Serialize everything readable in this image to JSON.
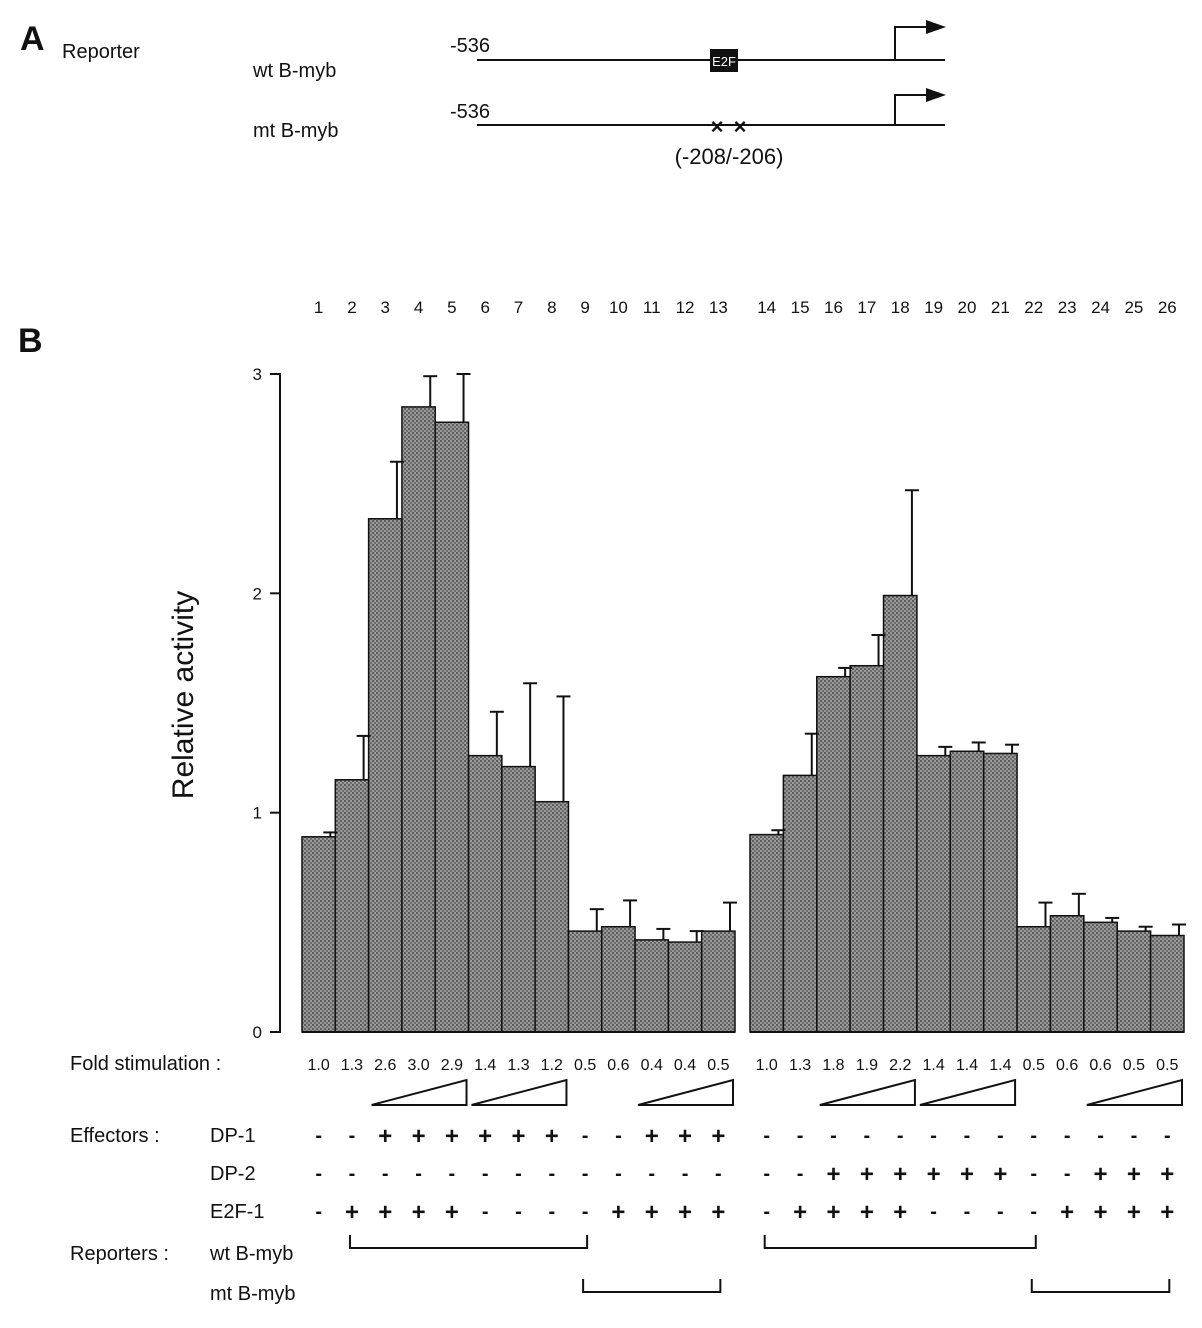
{
  "panel_a": {
    "letter": "A",
    "heading": "Reporter",
    "constructs": [
      {
        "name": "wt B-myb",
        "start": "-536",
        "box_label": "E2F"
      },
      {
        "name": "mt B-myb",
        "start": "-536",
        "mutation_label": "(-208/-206)"
      }
    ]
  },
  "panel_b": {
    "letter": "B",
    "lane_numbers": [
      "1",
      "2",
      "3",
      "4",
      "5",
      "6",
      "7",
      "8",
      "9",
      "10",
      "11",
      "12",
      "13",
      "14",
      "15",
      "16",
      "17",
      "18",
      "19",
      "20",
      "21",
      "22",
      "23",
      "24",
      "25",
      "26"
    ],
    "fold_label": "Fold stimulation :",
    "fold_values": [
      "1.0",
      "1.3",
      "2.6",
      "3.0",
      "2.9",
      "1.4",
      "1.3",
      "1.2",
      "0.5",
      "0.6",
      "0.4",
      "0.4",
      "0.5",
      "1.0",
      "1.3",
      "1.8",
      "1.9",
      "2.2",
      "1.4",
      "1.4",
      "1.4",
      "0.5",
      "0.6",
      "0.6",
      "0.5",
      "0.5"
    ],
    "dose_ramps_lanes": [
      [
        3,
        5
      ],
      [
        6,
        8
      ],
      [
        11,
        13
      ],
      [
        16,
        18
      ],
      [
        19,
        21
      ],
      [
        24,
        26
      ]
    ],
    "effectors_label": "Effectors :",
    "effectors": [
      {
        "name": "DP-1",
        "signs": [
          "-",
          "-",
          "+",
          "+",
          "+",
          "+",
          "+",
          "+",
          "-",
          "-",
          "+",
          "+",
          "+",
          "-",
          "-",
          "-",
          "-",
          "-",
          "-",
          "-",
          "-",
          "-",
          "-",
          "-",
          "-",
          "-"
        ]
      },
      {
        "name": "DP-2",
        "signs": [
          "-",
          "-",
          "-",
          "-",
          "-",
          "-",
          "-",
          "-",
          "-",
          "-",
          "-",
          "-",
          "-",
          "-",
          "-",
          "+",
          "+",
          "+",
          "+",
          "+",
          "+",
          "-",
          "-",
          "+",
          "+",
          "+"
        ]
      },
      {
        "name": "E2F-1",
        "signs": [
          "-",
          "+",
          "+",
          "+",
          "+",
          "-",
          "-",
          "-",
          "-",
          "+",
          "+",
          "+",
          "+",
          "-",
          "+",
          "+",
          "+",
          "+",
          "-",
          "-",
          "-",
          "-",
          "+",
          "+",
          "+",
          "+"
        ]
      }
    ],
    "reporters_label": "Reporters :",
    "reporters": [
      {
        "name": "wt  B-myb",
        "groups": [
          [
            2,
            9
          ],
          [
            14,
            22
          ]
        ]
      },
      {
        "name": "mt B-myb",
        "groups": [
          [
            9,
            13
          ],
          [
            22,
            26
          ]
        ]
      }
    ]
  },
  "chart_data": {
    "type": "bar",
    "title": "",
    "xlabel": "",
    "ylabel": "Relative activity",
    "ylim": [
      0,
      3
    ],
    "yticks": [
      0,
      1,
      2,
      3
    ],
    "categories": [
      "1",
      "2",
      "3",
      "4",
      "5",
      "6",
      "7",
      "8",
      "9",
      "10",
      "11",
      "12",
      "13",
      "14",
      "15",
      "16",
      "17",
      "18",
      "19",
      "20",
      "21",
      "22",
      "23",
      "24",
      "25",
      "26"
    ],
    "values": [
      0.89,
      1.15,
      2.34,
      2.85,
      2.78,
      1.26,
      1.21,
      1.05,
      0.46,
      0.48,
      0.42,
      0.41,
      0.46,
      0.9,
      1.17,
      1.62,
      1.67,
      1.99,
      1.26,
      1.28,
      1.27,
      0.48,
      0.53,
      0.5,
      0.46,
      0.44
    ],
    "errors": [
      0.02,
      0.2,
      0.26,
      0.14,
      0.22,
      0.2,
      0.38,
      0.48,
      0.1,
      0.12,
      0.05,
      0.05,
      0.13,
      0.02,
      0.19,
      0.04,
      0.14,
      0.48,
      0.04,
      0.04,
      0.04,
      0.11,
      0.1,
      0.02,
      0.02,
      0.05
    ],
    "groups": [
      [
        1,
        13
      ],
      [
        14,
        26
      ]
    ],
    "fill_color": "#8a8a8a",
    "edge_color": "#111111"
  }
}
